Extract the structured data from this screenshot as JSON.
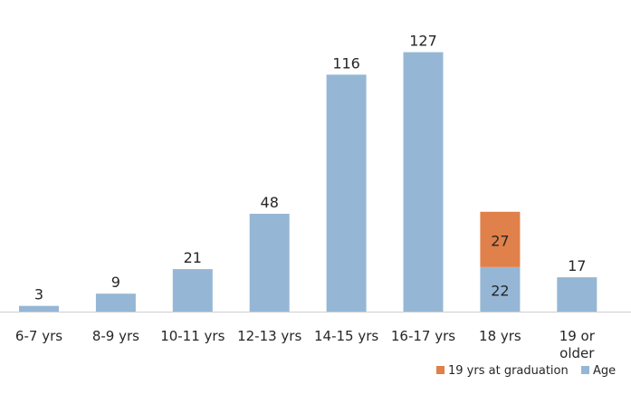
{
  "chart_data": {
    "type": "bar",
    "stacked": true,
    "categories": [
      "6-7 yrs",
      "8-9 yrs",
      "10-11 yrs",
      "12-13 yrs",
      "14-15 yrs",
      "16-17 yrs",
      "18 yrs",
      "19 or older"
    ],
    "category_lines": [
      [
        "6-7 yrs"
      ],
      [
        "8-9 yrs"
      ],
      [
        "10-11 yrs"
      ],
      [
        "12-13 yrs"
      ],
      [
        "14-15 yrs"
      ],
      [
        "16-17 yrs"
      ],
      [
        "18 yrs"
      ],
      [
        "19 or",
        "older"
      ]
    ],
    "series": [
      {
        "name": "Age",
        "color": "#95b7d5",
        "values": [
          3,
          9,
          21,
          48,
          116,
          127,
          22,
          17
        ],
        "labels": [
          "3",
          "9",
          "21",
          "48",
          "116",
          "127",
          "22",
          "17"
        ]
      },
      {
        "name": "19 yrs at graduation",
        "color": "#e0804a",
        "values": [
          0,
          0,
          0,
          0,
          0,
          0,
          27,
          0
        ],
        "labels": [
          "",
          "",
          "",
          "",
          "",
          "",
          "27",
          ""
        ]
      }
    ],
    "legend": {
      "placement": "bottom-right",
      "items": [
        {
          "name": "19 yrs at graduation",
          "color": "#e0804a"
        },
        {
          "name": "Age",
          "color": "#95b7d5"
        }
      ]
    },
    "ylim": [
      0,
      133
    ],
    "title": "",
    "xlabel": "",
    "ylabel": "",
    "grid": false
  }
}
